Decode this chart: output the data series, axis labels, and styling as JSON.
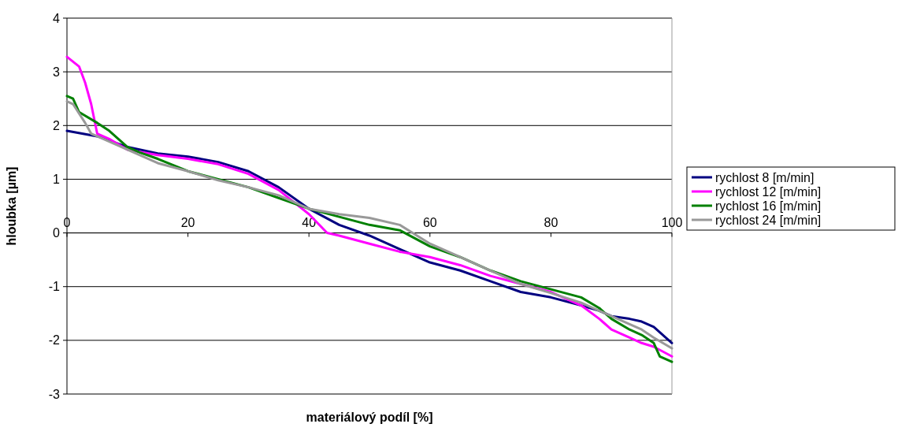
{
  "chart_data": {
    "type": "line",
    "xlabel": "materiálový podíl [%]",
    "ylabel": "hloubka [µm]",
    "xlim": [
      0,
      100
    ],
    "xticks": [
      0,
      20,
      40,
      60,
      80,
      100
    ],
    "ylim": [
      -3,
      4
    ],
    "yticks": [
      -3,
      -2,
      -1,
      0,
      1,
      2,
      3,
      4
    ],
    "grid": "y",
    "legend": "right",
    "marker": "none",
    "line_style": "solid",
    "series": [
      {
        "name": "rychlost 8 [m/min]",
        "color": "#000080",
        "x": [
          0,
          5,
          10,
          15,
          20,
          25,
          30,
          35,
          40,
          45,
          50,
          55,
          60,
          65,
          70,
          75,
          80,
          85,
          88,
          90,
          93,
          95,
          97,
          100
        ],
        "values": [
          1.9,
          1.8,
          1.6,
          1.48,
          1.42,
          1.32,
          1.15,
          0.85,
          0.45,
          0.15,
          -0.05,
          -0.3,
          -0.55,
          -0.7,
          -0.9,
          -1.1,
          -1.2,
          -1.35,
          -1.45,
          -1.55,
          -1.6,
          -1.65,
          -1.75,
          -2.05
        ]
      },
      {
        "name": "rychlost 12 [m/min]",
        "color": "#ff00ff",
        "x": [
          0,
          2,
          3,
          4,
          5,
          7,
          10,
          15,
          20,
          25,
          30,
          35,
          40,
          43,
          45,
          50,
          55,
          60,
          65,
          70,
          75,
          80,
          85,
          88,
          90,
          93,
          95,
          97,
          100
        ],
        "values": [
          3.28,
          3.1,
          2.8,
          2.4,
          1.85,
          1.75,
          1.55,
          1.45,
          1.38,
          1.28,
          1.1,
          0.8,
          0.35,
          0.0,
          -0.05,
          -0.2,
          -0.35,
          -0.45,
          -0.6,
          -0.8,
          -0.95,
          -1.1,
          -1.35,
          -1.6,
          -1.8,
          -1.95,
          -2.05,
          -2.12,
          -2.3
        ]
      },
      {
        "name": "rychlost 16 [m/min]",
        "color": "#008000",
        "x": [
          0,
          1,
          2,
          5,
          7,
          10,
          12,
          15,
          20,
          25,
          30,
          35,
          40,
          45,
          50,
          55,
          60,
          65,
          70,
          75,
          80,
          85,
          88,
          90,
          93,
          95,
          97,
          98,
          100
        ],
        "values": [
          2.55,
          2.5,
          2.25,
          2.05,
          1.9,
          1.6,
          1.5,
          1.38,
          1.15,
          1.0,
          0.85,
          0.65,
          0.45,
          0.3,
          0.15,
          0.05,
          -0.25,
          -0.45,
          -0.7,
          -0.9,
          -1.05,
          -1.2,
          -1.4,
          -1.6,
          -1.8,
          -1.9,
          -2.05,
          -2.3,
          -2.4
        ]
      },
      {
        "name": "rychlost 24 [m/min]",
        "color": "#999999",
        "x": [
          0,
          1,
          3,
          4,
          5,
          10,
          15,
          20,
          25,
          30,
          35,
          40,
          45,
          50,
          55,
          60,
          65,
          70,
          75,
          80,
          85,
          90,
          93,
          95,
          97,
          100
        ],
        "values": [
          2.45,
          2.4,
          2.05,
          1.85,
          1.8,
          1.55,
          1.3,
          1.15,
          0.98,
          0.85,
          0.7,
          0.45,
          0.35,
          0.28,
          0.15,
          -0.2,
          -0.45,
          -0.7,
          -0.95,
          -1.12,
          -1.3,
          -1.55,
          -1.7,
          -1.8,
          -1.95,
          -2.15
        ]
      }
    ]
  }
}
